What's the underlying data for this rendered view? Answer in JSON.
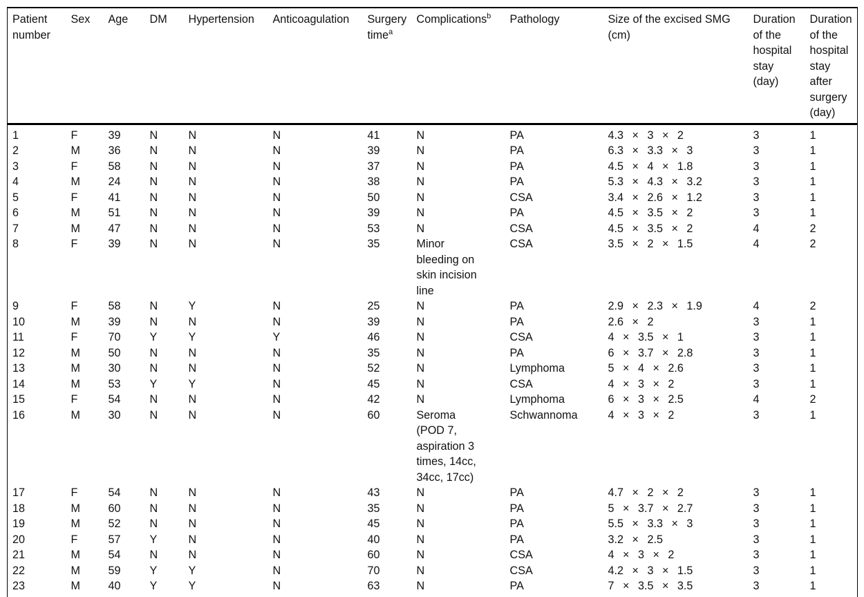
{
  "table": {
    "title": "Patient surgical data table",
    "columns": [
      {
        "label": "Patient\nnumber"
      },
      {
        "label": "Sex"
      },
      {
        "label": "Age"
      },
      {
        "label": "DM"
      },
      {
        "label": "Hypertension"
      },
      {
        "label": "Anticoagulation"
      },
      {
        "label": "Surgery\ntime",
        "sup": "a"
      },
      {
        "label": "Complications",
        "sup": "b"
      },
      {
        "label": "Pathology"
      },
      {
        "label": "Size of the excised SMG\n(cm)"
      },
      {
        "label": "Duration\nof the\nhospital\nstay\n(day)"
      },
      {
        "label": "Duration\nof the\nhospital\nstay\nafter\nsurgery\n(day)"
      }
    ],
    "rows": [
      [
        "1",
        "F",
        "39",
        "N",
        "N",
        "N",
        "41",
        "N",
        "PA",
        "4.3 × 3 × 2",
        "3",
        "1"
      ],
      [
        "2",
        "M",
        "36",
        "N",
        "N",
        "N",
        "39",
        "N",
        "PA",
        "6.3 × 3.3 × 3",
        "3",
        "1"
      ],
      [
        "3",
        "F",
        "58",
        "N",
        "N",
        "N",
        "37",
        "N",
        "PA",
        "4.5 × 4 × 1.8",
        "3",
        "1"
      ],
      [
        "4",
        "M",
        "24",
        "N",
        "N",
        "N",
        "38",
        "N",
        "PA",
        "5.3 × 4.3 × 3.2",
        "3",
        "1"
      ],
      [
        "5",
        "F",
        "41",
        "N",
        "N",
        "N",
        "50",
        "N",
        "CSA",
        "3.4 × 2.6 × 1.2",
        "3",
        "1"
      ],
      [
        "6",
        "M",
        "51",
        "N",
        "N",
        "N",
        "39",
        "N",
        "PA",
        "4.5 × 3.5 × 2",
        "3",
        "1"
      ],
      [
        "7",
        "M",
        "47",
        "N",
        "N",
        "N",
        "53",
        "N",
        "CSA",
        "4.5 × 3.5 × 2",
        "4",
        "2"
      ],
      [
        "8",
        "F",
        "39",
        "N",
        "N",
        "N",
        "35",
        "Minor\nbleeding on\nskin incision\nline",
        "CSA",
        "3.5 × 2 × 1.5",
        "4",
        "2"
      ],
      [
        "9",
        "F",
        "58",
        "N",
        "Y",
        "N",
        "25",
        "N",
        "PA",
        "2.9 × 2.3 × 1.9",
        "4",
        "2"
      ],
      [
        "10",
        "M",
        "39",
        "N",
        "N",
        "N",
        "39",
        "N",
        "PA",
        "2.6 × 2",
        "3",
        "1"
      ],
      [
        "11",
        "F",
        "70",
        "Y",
        "Y",
        "Y",
        "46",
        "N",
        "CSA",
        "4 × 3.5 × 1",
        "3",
        "1"
      ],
      [
        "12",
        "M",
        "50",
        "N",
        "N",
        "N",
        "35",
        "N",
        "PA",
        "6 × 3.7 × 2.8",
        "3",
        "1"
      ],
      [
        "13",
        "M",
        "30",
        "N",
        "N",
        "N",
        "52",
        "N",
        "Lymphoma",
        "5 × 4 × 2.6",
        "3",
        "1"
      ],
      [
        "14",
        "M",
        "53",
        "Y",
        "Y",
        "N",
        "45",
        "N",
        "CSA",
        "4 × 3 × 2",
        "3",
        "1"
      ],
      [
        "15",
        "F",
        "54",
        "N",
        "N",
        "N",
        "42",
        "N",
        "Lymphoma",
        "6 × 3 × 2.5",
        "4",
        "2"
      ],
      [
        "16",
        "M",
        "30",
        "N",
        "N",
        "N",
        "60",
        "Seroma\n(POD 7,\naspiration 3\ntimes, 14cc,\n34cc, 17cc)",
        "Schwannoma",
        "4 × 3 × 2",
        "3",
        "1"
      ],
      [
        "17",
        "F",
        "54",
        "N",
        "N",
        "N",
        "43",
        "N",
        "PA",
        "4.7 × 2 × 2",
        "3",
        "1"
      ],
      [
        "18",
        "M",
        "60",
        "N",
        "N",
        "N",
        "35",
        "N",
        "PA",
        "5 × 3.7 × 2.7",
        "3",
        "1"
      ],
      [
        "19",
        "M",
        "52",
        "N",
        "N",
        "N",
        "45",
        "N",
        "PA",
        "5.5 × 3.3 × 3",
        "3",
        "1"
      ],
      [
        "20",
        "F",
        "57",
        "Y",
        "N",
        "N",
        "40",
        "N",
        "PA",
        "3.2 × 2.5",
        "3",
        "1"
      ],
      [
        "21",
        "M",
        "54",
        "N",
        "N",
        "N",
        "60",
        "N",
        "CSA",
        "4 × 3 × 2",
        "3",
        "1"
      ],
      [
        "22",
        "M",
        "59",
        "Y",
        "Y",
        "N",
        "70",
        "N",
        "CSA",
        "4.2 × 3 × 1.5",
        "3",
        "1"
      ],
      [
        "23",
        "M",
        "40",
        "Y",
        "Y",
        "N",
        "63",
        "N",
        "PA",
        "7 × 3.5 × 3.5",
        "3",
        "1"
      ]
    ],
    "colors": {
      "text": "#111111",
      "border": "#000000",
      "background": "#ffffff"
    }
  }
}
